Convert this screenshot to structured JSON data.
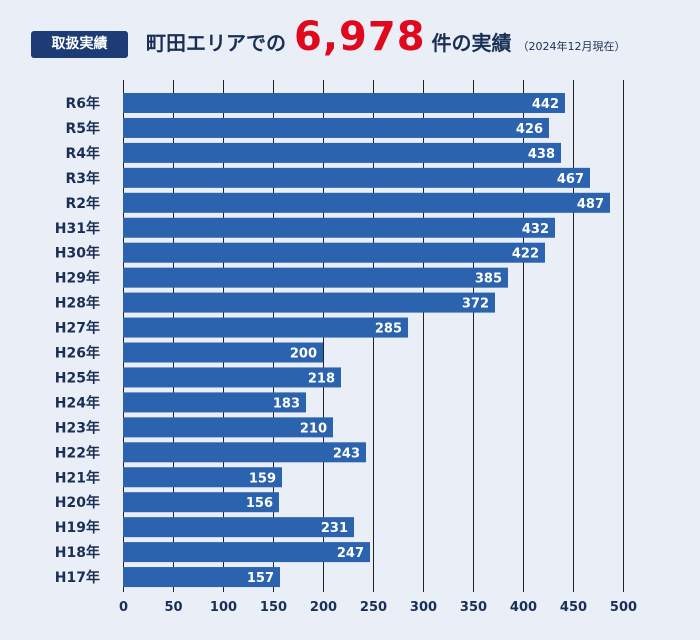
{
  "header": {
    "badge": "取扱実績",
    "prefix": "町田エリアでの",
    "total": "6,978",
    "suffix": "件の実績",
    "note": "（2024年12月現在）"
  },
  "chart_data": {
    "type": "bar",
    "orientation": "horizontal",
    "categories": [
      "R6年",
      "R5年",
      "R4年",
      "R3年",
      "R2年",
      "H31年",
      "H30年",
      "H29年",
      "H28年",
      "H27年",
      "H26年",
      "H25年",
      "H24年",
      "H23年",
      "H22年",
      "H21年",
      "H20年",
      "H19年",
      "H18年",
      "H17年"
    ],
    "values": [
      442,
      426,
      438,
      467,
      487,
      432,
      422,
      385,
      372,
      285,
      200,
      218,
      183,
      210,
      243,
      159,
      156,
      231,
      247,
      157
    ],
    "xlim": [
      0,
      500
    ],
    "xticks": [
      0,
      50,
      100,
      150,
      200,
      250,
      300,
      350,
      400,
      450,
      500
    ],
    "grid": true,
    "bar_color": "#2b63ae",
    "data_labels": true
  }
}
